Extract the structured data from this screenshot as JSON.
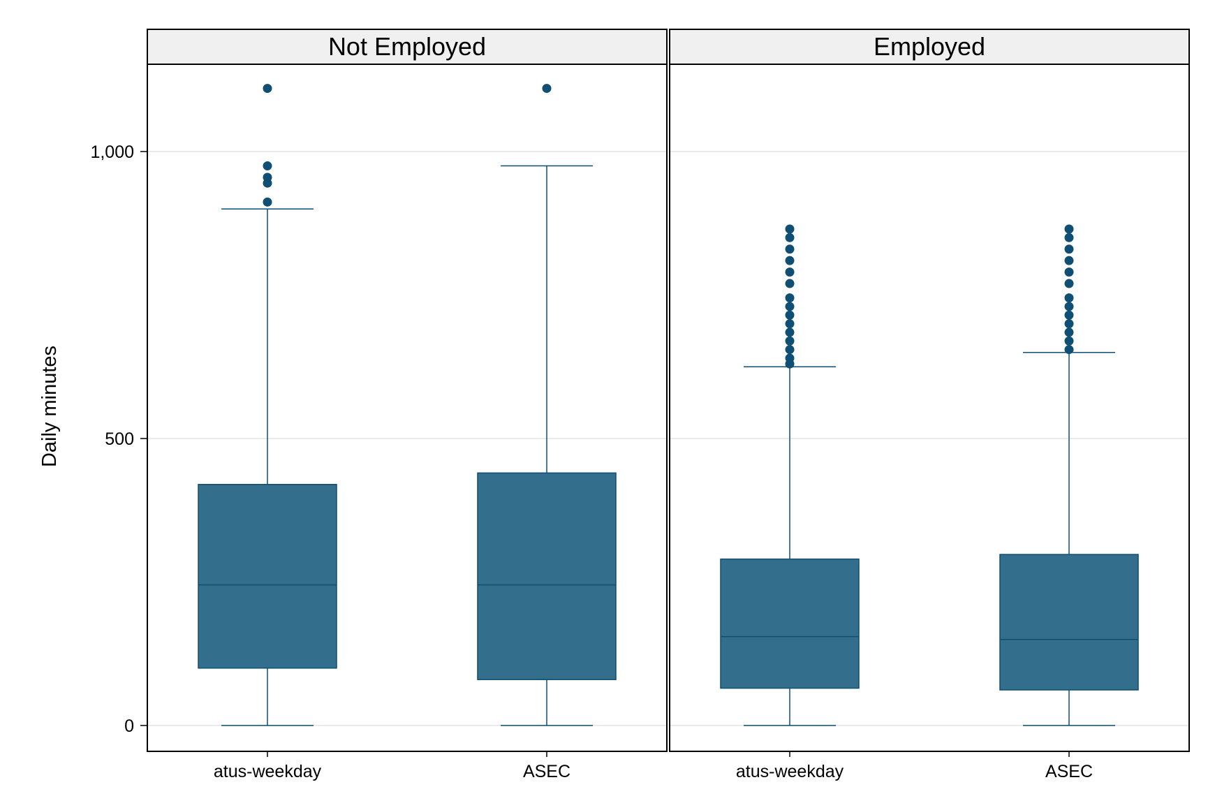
{
  "chart_data": {
    "type": "boxplot",
    "ylabel": "Daily minutes",
    "ylim": [
      -40,
      1150
    ],
    "yticks": [
      0,
      500,
      1000
    ],
    "ytick_labels": [
      "0",
      "500",
      "1,000"
    ],
    "grid": "horizontal",
    "colors": {
      "box_fill": "#336e8c",
      "box_line": "#0e4f73",
      "outlier": "#0e4f73",
      "grid": "#e3e3e3",
      "strip_bg": "#f0f0f0"
    },
    "panels": [
      {
        "name": "Not Employed",
        "categories": [
          "atus-weekday",
          "ASEC"
        ],
        "boxes": [
          {
            "min": 0,
            "q1": 100,
            "median": 245,
            "q3": 420,
            "max": 900,
            "outliers": [
              912,
              945,
              955,
              975,
              1110
            ]
          },
          {
            "min": 0,
            "q1": 80,
            "median": 245,
            "q3": 440,
            "max": 975,
            "outliers": [
              1110
            ]
          }
        ]
      },
      {
        "name": "Employed",
        "categories": [
          "atus-weekday",
          "ASEC"
        ],
        "boxes": [
          {
            "min": 0,
            "q1": 65,
            "median": 155,
            "q3": 290,
            "max": 625,
            "outliers": [
              630,
              640,
              655,
              670,
              685,
              700,
              715,
              730,
              745,
              770,
              790,
              810,
              830,
              850,
              865
            ]
          },
          {
            "min": 0,
            "q1": 62,
            "median": 150,
            "q3": 298,
            "max": 650,
            "outliers": [
              655,
              670,
              685,
              700,
              715,
              730,
              745,
              770,
              790,
              810,
              830,
              850,
              865
            ]
          }
        ]
      }
    ]
  }
}
